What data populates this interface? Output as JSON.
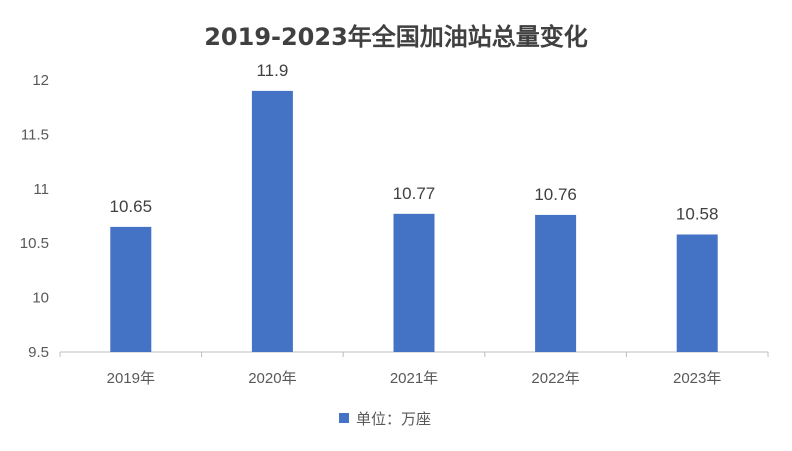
{
  "chart_data": {
    "type": "bar",
    "title": "2019-2023年全国加油站总量变化",
    "categories": [
      "2019年",
      "2020年",
      "2021年",
      "2022年",
      "2023年"
    ],
    "series": [
      {
        "name": "单位：万座",
        "values": [
          10.65,
          11.9,
          10.77,
          10.76,
          10.58
        ],
        "color": "#4472C4"
      }
    ],
    "data_labels": [
      "10.65",
      "11.9",
      "10.77",
      "10.76",
      "10.58"
    ],
    "y_ticks": [
      "9.5",
      "10",
      "10.5",
      "11",
      "11.5",
      "12"
    ],
    "ylim": [
      9.5,
      12
    ],
    "grid": false,
    "legend_position": "bottom"
  }
}
